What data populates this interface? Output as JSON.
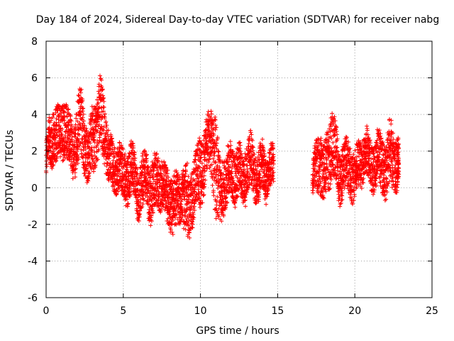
{
  "chart_data": {
    "type": "scatter",
    "title": "Day 184 of 2024, Sidereal Day-to-day VTEC variation (SDTVAR) for receiver nabg",
    "xlabel": "GPS time / hours",
    "ylabel": "SDTVAR / TECUs",
    "xlim": [
      0,
      25
    ],
    "ylim": [
      -6,
      8
    ],
    "x_ticks": [
      "0",
      "5",
      "10",
      "15",
      "20",
      "25"
    ],
    "y_ticks": [
      "-6",
      "-4",
      "-2",
      "0",
      "2",
      "4",
      "6",
      "8"
    ],
    "grid": true,
    "marker": "plus",
    "color": "#ff0000",
    "series": [
      {
        "name": "SDTVAR",
        "segments": [
          {
            "x": [
              0.0,
              0.25,
              0.5,
              0.75,
              1.0,
              1.25,
              1.5,
              1.75,
              2.0,
              2.25,
              2.5,
              2.75,
              3.0,
              3.25,
              3.5,
              3.75,
              4.0,
              4.25,
              4.5,
              4.75,
              5.0,
              5.25,
              5.5,
              5.75,
              6.0,
              6.25,
              6.5,
              6.75,
              7.0,
              7.25,
              7.5,
              7.75,
              8.0,
              8.25,
              8.5,
              8.75,
              9.0,
              9.25,
              9.5,
              9.75,
              10.0,
              10.25,
              10.5,
              10.75,
              11.0,
              11.25,
              11.5,
              11.75,
              12.0,
              12.25,
              12.5,
              12.75,
              13.0,
              13.25,
              13.5,
              13.75,
              14.0,
              14.25,
              14.5,
              14.75
            ],
            "center": [
              1.5,
              2.5,
              3.0,
              2.8,
              3.2,
              3.4,
              2.6,
              2.0,
              2.8,
              3.5,
              2.4,
              1.5,
              2.6,
              3.2,
              4.2,
              3.0,
              2.0,
              1.2,
              1.0,
              1.4,
              0.4,
              0.6,
              1.2,
              0.4,
              -0.2,
              0.2,
              0.6,
              -0.4,
              0.0,
              0.6,
              0.2,
              -0.4,
              -0.6,
              -1.0,
              -0.8,
              -0.2,
              -0.6,
              -1.0,
              -0.2,
              0.6,
              0.8,
              1.6,
              2.4,
              2.6,
              1.0,
              -0.4,
              0.2,
              0.6,
              1.0,
              0.6,
              0.8,
              0.4,
              1.0,
              1.4,
              0.8,
              0.6,
              1.2,
              0.6,
              1.0,
              1.2
            ],
            "spread": [
              0.9,
              1.3,
              1.5,
              1.5,
              1.5,
              1.6,
              1.4,
              1.4,
              1.7,
              1.8,
              1.6,
              1.4,
              1.7,
              1.8,
              1.9,
              1.7,
              1.4,
              1.3,
              1.3,
              1.4,
              1.3,
              1.4,
              1.4,
              1.3,
              1.4,
              1.4,
              1.4,
              1.5,
              1.5,
              1.4,
              1.4,
              1.4,
              1.5,
              1.6,
              1.4,
              1.3,
              1.8,
              2.2,
              1.6,
              1.5,
              2.1,
              1.5,
              1.4,
              1.9,
              2.8,
              1.8,
              1.5,
              1.5,
              1.4,
              1.4,
              1.4,
              1.5,
              1.5,
              1.4,
              1.3,
              1.3,
              1.3,
              1.2,
              1.1,
              1.0
            ]
          },
          {
            "x": [
              17.25,
              17.5,
              17.75,
              18.0,
              18.25,
              18.5,
              18.75,
              19.0,
              19.25,
              19.5,
              19.75,
              20.0,
              20.25,
              20.5,
              20.75,
              21.0,
              21.25,
              21.5,
              21.75,
              22.0,
              22.25,
              22.5,
              22.75,
              22.85
            ],
            "center": [
              0.3,
              1.2,
              1.6,
              0.6,
              1.4,
              2.6,
              1.8,
              0.6,
              1.0,
              1.2,
              0.8,
              0.6,
              1.2,
              1.6,
              1.8,
              1.4,
              1.2,
              1.6,
              1.4,
              1.0,
              1.8,
              1.8,
              1.2,
              1.4
            ],
            "spread": [
              0.8,
              1.3,
              1.6,
              1.5,
              1.6,
              1.9,
              1.6,
              1.4,
              1.4,
              1.3,
              1.4,
              1.3,
              1.2,
              1.3,
              1.3,
              1.3,
              1.3,
              1.3,
              1.4,
              1.6,
              1.8,
              1.6,
              1.4,
              1.0
            ]
          }
        ]
      }
    ]
  }
}
